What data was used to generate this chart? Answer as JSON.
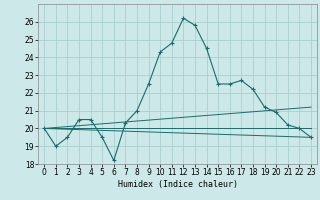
{
  "title": "",
  "xlabel": "Humidex (Indice chaleur)",
  "bg_color": "#cce8e8",
  "grid_color": "#aacfcf",
  "line_color": "#1a6b6b",
  "xlim": [
    -0.5,
    23.5
  ],
  "ylim": [
    18,
    27
  ],
  "yticks": [
    18,
    19,
    20,
    21,
    22,
    23,
    24,
    25,
    26
  ],
  "xticks": [
    0,
    1,
    2,
    3,
    4,
    5,
    6,
    7,
    8,
    9,
    10,
    11,
    12,
    13,
    14,
    15,
    16,
    17,
    18,
    19,
    20,
    21,
    22,
    23
  ],
  "series1_x": [
    0,
    1,
    2,
    3,
    4,
    5,
    6,
    7,
    8,
    9,
    10,
    11,
    12,
    13,
    14,
    15,
    16,
    17,
    18,
    19,
    20,
    21,
    22,
    23
  ],
  "series1_y": [
    20.0,
    19.0,
    19.5,
    20.5,
    20.5,
    19.5,
    18.2,
    20.3,
    21.0,
    22.5,
    24.3,
    24.8,
    26.2,
    25.8,
    24.5,
    22.5,
    22.5,
    22.7,
    22.2,
    21.2,
    20.9,
    20.2,
    20.0,
    19.5
  ],
  "series2_x": [
    0,
    23
  ],
  "series2_y": [
    20.0,
    21.2
  ],
  "series3_x": [
    0,
    23
  ],
  "series3_y": [
    20.0,
    20.0
  ],
  "series4_x": [
    0,
    23
  ],
  "series4_y": [
    20.0,
    19.5
  ],
  "xlabel_fontsize": 6,
  "tick_fontsize": 5.5
}
